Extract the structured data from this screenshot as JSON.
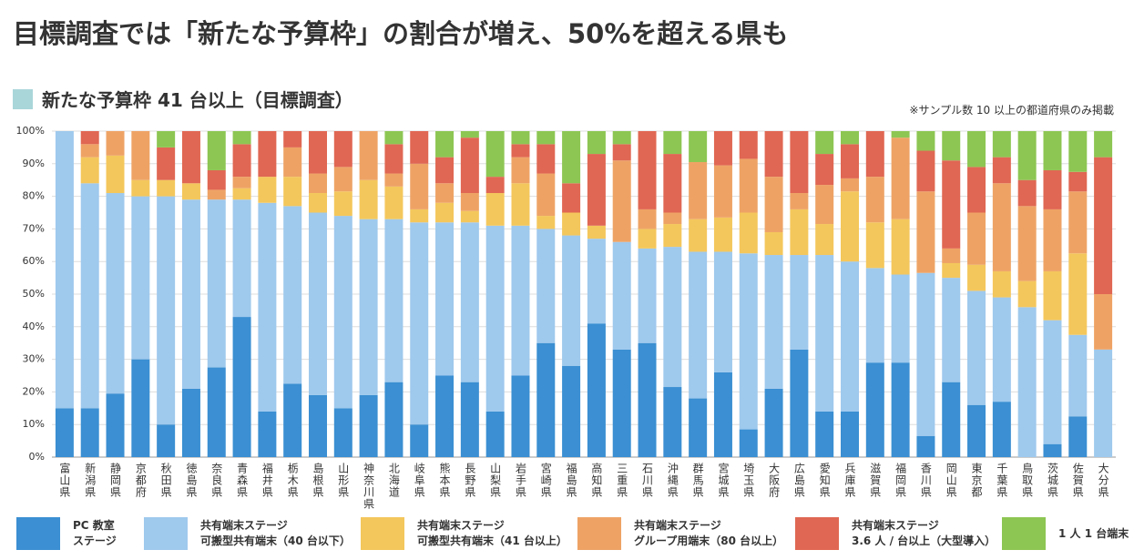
{
  "chart_data": {
    "type": "stacked_bar",
    "title": "目標調査では「新たな予算枠」の割合が増え、50%を超える県も",
    "subtitle": "新たな予算枠 41 台以上（目標調査）",
    "note": "※サンプル数 10 以上の都道府県のみ掲載",
    "categories": [
      "富山県",
      "新潟県",
      "静岡県",
      "京都府",
      "秋田県",
      "徳島県",
      "奈良県",
      "青森県",
      "福井県",
      "栃木県",
      "島根県",
      "山形県",
      "神奈川県",
      "北海道",
      "岐阜県",
      "熊本県",
      "長野県",
      "山梨県",
      "岩手県",
      "宮崎県",
      "福島県",
      "高知県",
      "三重県",
      "石川県",
      "沖縄県",
      "群馬県",
      "宮城県",
      "埼玉県",
      "大阪府",
      "広島県",
      "愛知県",
      "兵庫県",
      "滋賀県",
      "福岡県",
      "香川県",
      "岡山県",
      "東京都",
      "千葉県",
      "鳥取県",
      "茨城県",
      "佐賀県",
      "大分県"
    ],
    "series": [
      {
        "name": "PC 教室\nステージ",
        "color": "#3b8fd2",
        "values": [
          15,
          15,
          19.5,
          30,
          10,
          21,
          27.5,
          43,
          14,
          22.5,
          19,
          15,
          19,
          23,
          10,
          25,
          23,
          14,
          25,
          35,
          28,
          41,
          33,
          35,
          21.5,
          18,
          26,
          8.5,
          21,
          33,
          14,
          14,
          29,
          29,
          6.5,
          23,
          16,
          17,
          0,
          4,
          12.5,
          0
        ]
      },
      {
        "name": "共有端末ステージ\n可搬型共有端末（40 台以下）",
        "color": "#9fc9ed",
        "values": [
          85,
          69,
          61.5,
          50,
          70,
          58,
          51.5,
          36,
          64,
          54.5,
          56,
          59,
          54,
          50,
          62,
          47,
          49,
          57,
          46,
          35,
          40,
          26,
          33,
          29,
          43,
          45,
          37,
          54,
          41,
          29,
          48,
          46,
          29,
          27,
          50,
          32,
          35,
          32,
          46,
          38,
          25,
          33
        ]
      },
      {
        "name": "共有端末ステージ\n可搬型共有端末（41 台以上）",
        "color": "#f4c75c",
        "values": [
          0,
          8,
          11.5,
          5,
          5,
          5,
          0,
          3.5,
          8,
          9,
          6,
          7.5,
          12,
          10,
          4,
          6,
          3.5,
          10,
          13,
          4,
          7,
          4,
          0,
          6,
          7,
          10,
          10.5,
          12.5,
          7,
          14,
          9.5,
          21.5,
          14,
          17,
          0,
          4.5,
          8,
          8,
          8,
          15,
          25,
          0
        ]
      },
      {
        "name": "共有端末ステージ\nグループ用端末（80 台以上）",
        "color": "#eea365",
        "values": [
          0,
          4,
          7.5,
          15,
          0,
          0,
          3,
          3.5,
          0,
          9,
          6,
          7.5,
          15,
          4,
          14,
          6,
          5.5,
          0,
          8,
          13,
          0,
          0,
          25,
          6,
          3.5,
          17.5,
          16,
          16.5,
          17,
          5,
          12,
          4,
          14,
          25,
          25,
          4.5,
          16,
          27,
          23,
          19,
          19,
          17
        ]
      },
      {
        "name": "共有端末ステージ\n3.6 人 / 台以上（大型導入）",
        "color": "#e06753",
        "values": [
          0,
          4,
          0,
          0,
          10,
          16,
          6,
          10,
          14,
          5,
          13,
          11,
          0,
          9,
          10,
          8,
          17,
          5,
          4,
          9,
          9,
          22,
          5,
          24,
          18,
          0,
          10.5,
          8.5,
          14,
          19,
          9.5,
          10.5,
          14,
          0,
          12.5,
          27,
          14,
          8,
          8,
          12,
          6,
          42
        ]
      },
      {
        "name": "1 人 1 台端末",
        "color": "#8dc653",
        "values": [
          0,
          0,
          0,
          0,
          5,
          0,
          12,
          4,
          0,
          0,
          0,
          0,
          0,
          4,
          0,
          8,
          2,
          14,
          4,
          4,
          16,
          7,
          4,
          0,
          7,
          9.5,
          0,
          0,
          0,
          0,
          7,
          4,
          0,
          2,
          6,
          9,
          11,
          8,
          15,
          12,
          12.5,
          8
        ]
      }
    ],
    "ylim": [
      0,
      100
    ],
    "yticks": [
      {
        "value": 0,
        "label": "0%"
      },
      {
        "value": 10,
        "label": "10%"
      },
      {
        "value": 20,
        "label": "20%"
      },
      {
        "value": 30,
        "label": "30%"
      },
      {
        "value": 40,
        "label": "40%"
      },
      {
        "value": 50,
        "label": "50%"
      },
      {
        "value": 60,
        "label": "60%"
      },
      {
        "value": 70,
        "label": "70%"
      },
      {
        "value": 80,
        "label": "80%"
      },
      {
        "value": 90,
        "label": "90%"
      },
      {
        "value": 100,
        "label": "100%"
      }
    ],
    "grid": true
  }
}
